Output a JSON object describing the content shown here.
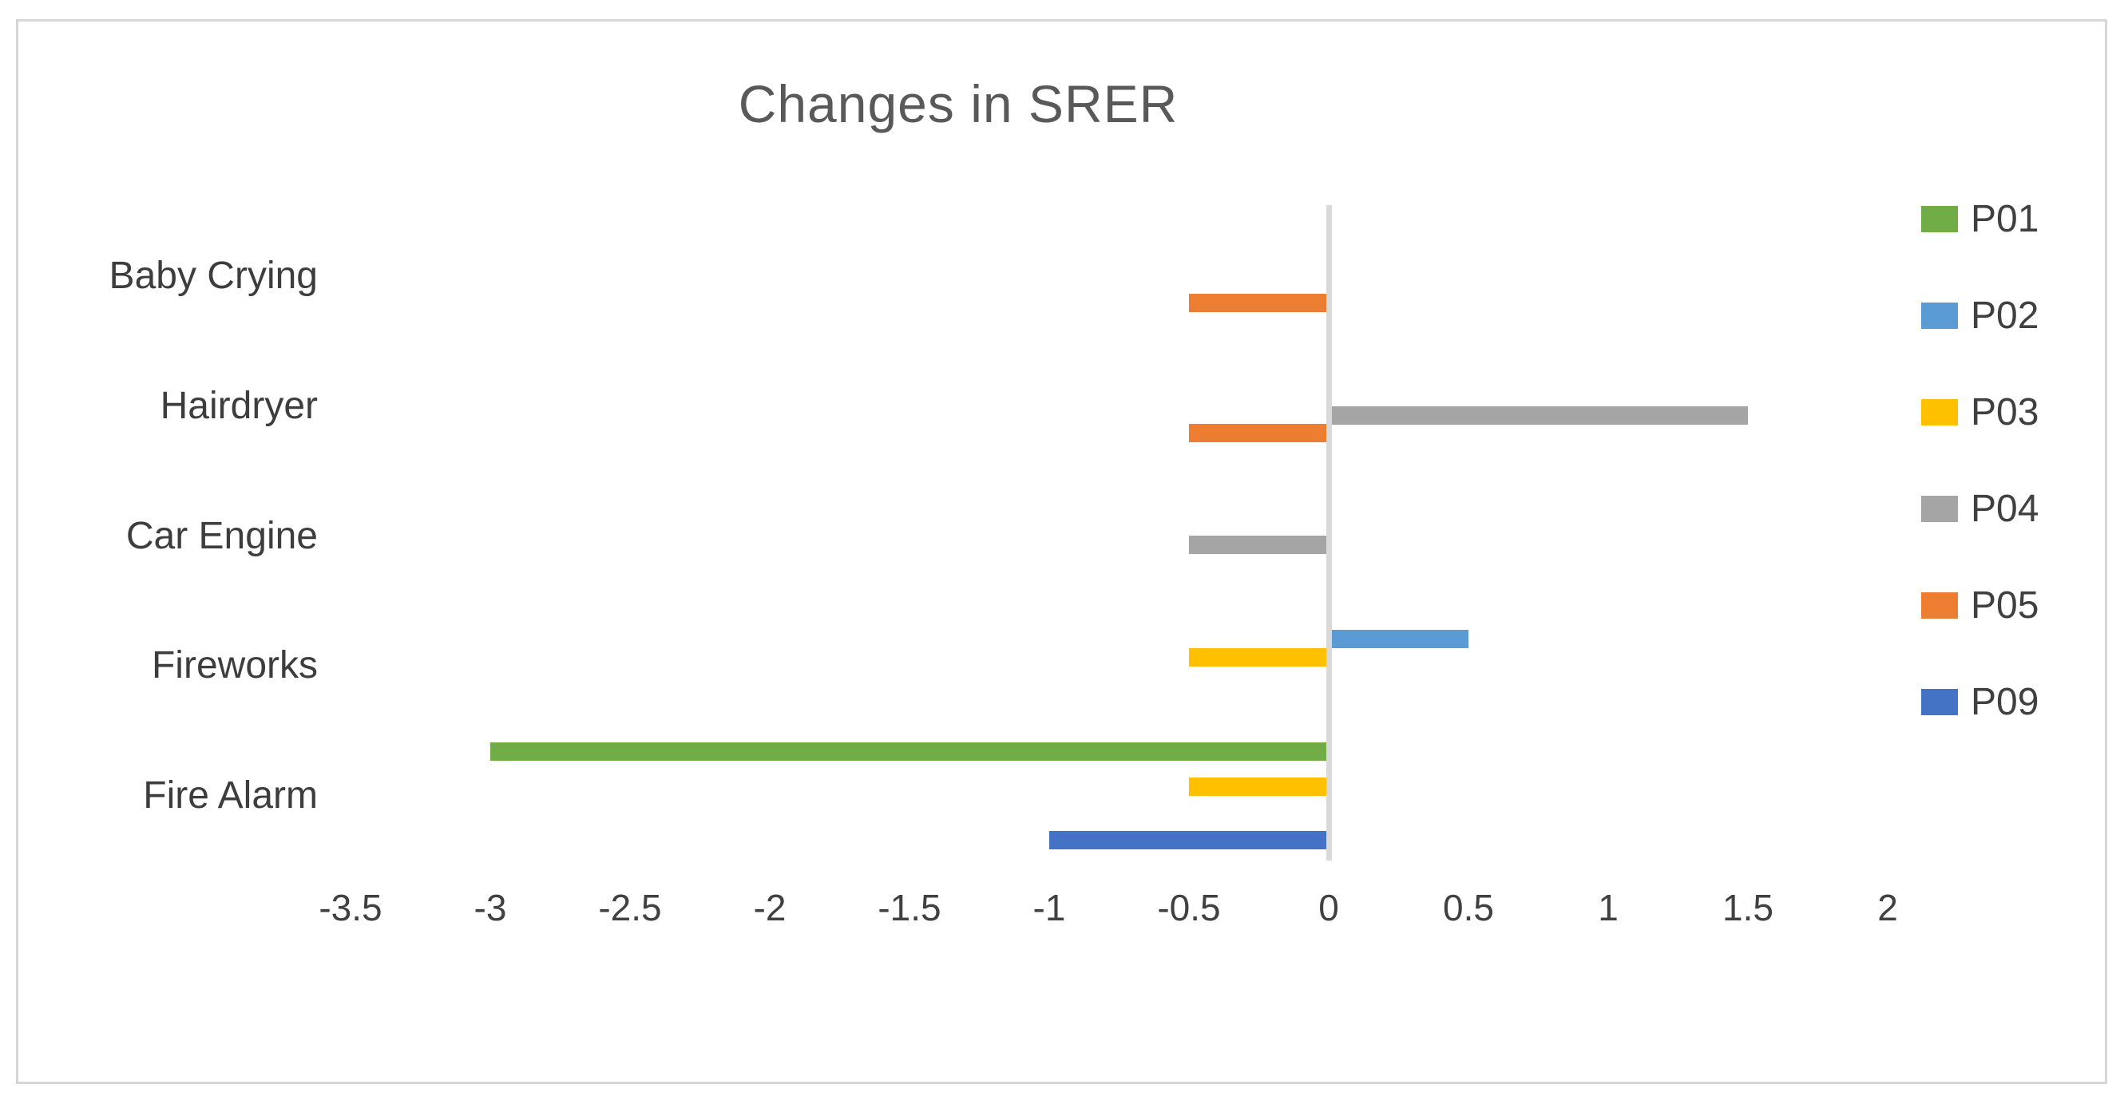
{
  "figure": {
    "background": "#ffffff",
    "border_color": "#d6d6d6"
  },
  "chart_data": {
    "type": "bar",
    "orientation": "horizontal",
    "title": "Changes in SRER",
    "title_color": "#595959",
    "categories": [
      "Baby Crying",
      "Hairdryer",
      "Car Engine",
      "Fireworks",
      "Fire Alarm"
    ],
    "series": [
      {
        "name": "P01",
        "color": "#70AD47",
        "values": [
          0,
          0,
          0,
          0,
          -3
        ]
      },
      {
        "name": "P02",
        "color": "#5B9BD5",
        "values": [
          0,
          0,
          0,
          0.5,
          0
        ]
      },
      {
        "name": "P03",
        "color": "#FFC000",
        "values": [
          0,
          0,
          0,
          -0.5,
          -0.5
        ]
      },
      {
        "name": "P04",
        "color": "#A5A5A5",
        "values": [
          0,
          1.5,
          -0.5,
          0,
          0
        ]
      },
      {
        "name": "P05",
        "color": "#ED7D31",
        "values": [
          -0.5,
          -0.5,
          0,
          0,
          0
        ]
      },
      {
        "name": "P09",
        "color": "#4472C4",
        "values": [
          0,
          0,
          0,
          0,
          -1
        ]
      }
    ],
    "x_ticks": [
      {
        "value": -3.5,
        "label": "-3.5"
      },
      {
        "value": -3,
        "label": "-3"
      },
      {
        "value": -2.5,
        "label": "-2.5"
      },
      {
        "value": -2,
        "label": "-2"
      },
      {
        "value": -1.5,
        "label": "-1.5"
      },
      {
        "value": -1,
        "label": "-1"
      },
      {
        "value": -0.5,
        "label": "-0.5"
      },
      {
        "value": 0,
        "label": "0"
      },
      {
        "value": 0.5,
        "label": "0.5"
      },
      {
        "value": 1,
        "label": "1"
      },
      {
        "value": 1.5,
        "label": "1.5"
      },
      {
        "value": 2,
        "label": "2"
      }
    ],
    "xlim": [
      -3.75,
      2.25
    ],
    "grid": false,
    "axis_line_color": "#d9d9d9",
    "text_color": "#404040",
    "legend_position": "right"
  }
}
